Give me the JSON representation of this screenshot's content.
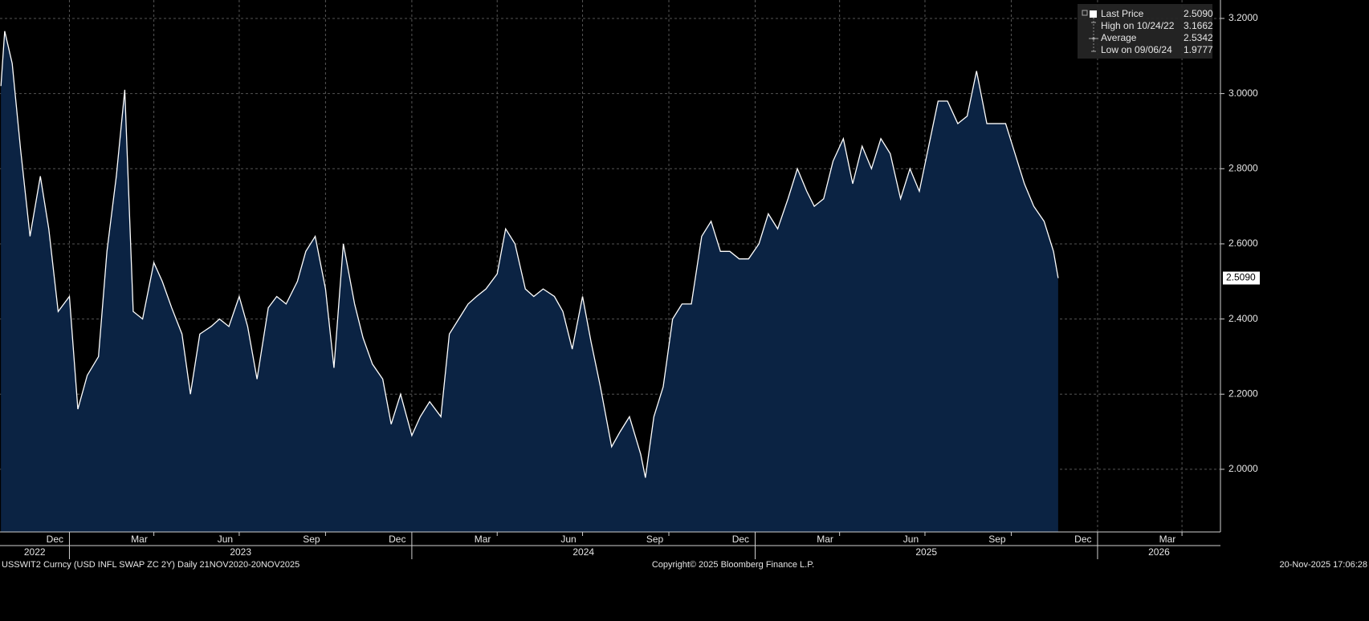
{
  "chart_data": {
    "type": "area",
    "series": [
      {
        "name": "Last Price",
        "color": "#ffffff",
        "fill": "#0b2343",
        "x": [
          "2022-10-20",
          "2022-10-24",
          "2022-11-01",
          "2022-11-10",
          "2022-11-20",
          "2022-12-01",
          "2022-12-10",
          "2022-12-20",
          "2023-01-01",
          "2023-01-10",
          "2023-01-20",
          "2023-02-01",
          "2023-02-10",
          "2023-02-20",
          "2023-03-01",
          "2023-03-10",
          "2023-03-20",
          "2023-04-01",
          "2023-04-10",
          "2023-04-20",
          "2023-05-01",
          "2023-05-10",
          "2023-05-20",
          "2023-06-01",
          "2023-06-10",
          "2023-06-20",
          "2023-07-01",
          "2023-07-10",
          "2023-07-20",
          "2023-08-01",
          "2023-08-10",
          "2023-08-20",
          "2023-09-01",
          "2023-09-10",
          "2023-09-20",
          "2023-10-01",
          "2023-10-10",
          "2023-10-20",
          "2023-11-01",
          "2023-11-10",
          "2023-11-20",
          "2023-12-01",
          "2023-12-10",
          "2023-12-20",
          "2024-01-01",
          "2024-01-10",
          "2024-01-20",
          "2024-02-01",
          "2024-02-10",
          "2024-02-20",
          "2024-03-01",
          "2024-03-10",
          "2024-03-20",
          "2024-04-01",
          "2024-04-10",
          "2024-04-20",
          "2024-05-01",
          "2024-05-10",
          "2024-05-20",
          "2024-06-01",
          "2024-06-10",
          "2024-06-20",
          "2024-07-01",
          "2024-07-10",
          "2024-07-20",
          "2024-08-01",
          "2024-08-10",
          "2024-08-20",
          "2024-09-01",
          "2024-09-06",
          "2024-09-15",
          "2024-09-25",
          "2024-10-05",
          "2024-10-15",
          "2024-10-25",
          "2024-11-05",
          "2024-11-15",
          "2024-11-25",
          "2024-12-05",
          "2024-12-15",
          "2024-12-25",
          "2025-01-05",
          "2025-01-15",
          "2025-01-25",
          "2025-02-05",
          "2025-02-15",
          "2025-02-25",
          "2025-03-05",
          "2025-03-15",
          "2025-03-25",
          "2025-04-05",
          "2025-04-15",
          "2025-04-25",
          "2025-05-05",
          "2025-05-15",
          "2025-05-25",
          "2025-06-05",
          "2025-06-15",
          "2025-06-25",
          "2025-07-05",
          "2025-07-15",
          "2025-07-25",
          "2025-08-05",
          "2025-08-15",
          "2025-08-25",
          "2025-09-05",
          "2025-09-15",
          "2025-09-25",
          "2025-10-05",
          "2025-10-15",
          "2025-10-25",
          "2025-11-05",
          "2025-11-15",
          "2025-11-20"
        ],
        "values": [
          3.02,
          3.1662,
          3.08,
          2.85,
          2.62,
          2.78,
          2.64,
          2.42,
          2.46,
          2.16,
          2.25,
          2.3,
          2.58,
          2.78,
          3.01,
          2.42,
          2.4,
          2.55,
          2.5,
          2.43,
          2.36,
          2.2,
          2.36,
          2.38,
          2.4,
          2.38,
          2.46,
          2.38,
          2.24,
          2.43,
          2.46,
          2.44,
          2.5,
          2.58,
          2.62,
          2.48,
          2.27,
          2.6,
          2.44,
          2.35,
          2.28,
          2.24,
          2.12,
          2.2,
          2.09,
          2.14,
          2.18,
          2.14,
          2.36,
          2.4,
          2.44,
          2.46,
          2.48,
          2.52,
          2.64,
          2.6,
          2.48,
          2.46,
          2.48,
          2.46,
          2.42,
          2.32,
          2.46,
          2.34,
          2.22,
          2.06,
          2.1,
          2.14,
          2.04,
          1.9777,
          2.14,
          2.22,
          2.4,
          2.44,
          2.44,
          2.62,
          2.66,
          2.58,
          2.58,
          2.56,
          2.56,
          2.6,
          2.68,
          2.64,
          2.72,
          2.8,
          2.74,
          2.7,
          2.72,
          2.82,
          2.88,
          2.76,
          2.86,
          2.8,
          2.88,
          2.84,
          2.72,
          2.8,
          2.74,
          2.86,
          2.98,
          2.98,
          2.92,
          2.94,
          3.06,
          2.92,
          2.92,
          2.92,
          2.84,
          2.76,
          2.7,
          2.66,
          2.58,
          2.509
        ]
      }
    ],
    "last_value_label": "2.5090",
    "xlim": [
      "2022-10-19",
      "2026-05-12"
    ],
    "ylim": [
      1.8333,
      3.249
    ],
    "yticks": [
      {
        "value": 2.0,
        "label": "2.0000"
      },
      {
        "value": 2.2,
        "label": "2.2000"
      },
      {
        "value": 2.4,
        "label": "2.4000"
      },
      {
        "value": 2.6,
        "label": "2.6000"
      },
      {
        "value": 2.8,
        "label": "2.8000"
      },
      {
        "value": 3.0,
        "label": "3.0000"
      },
      {
        "value": 3.2,
        "label": "3.2000"
      }
    ],
    "xticks": [
      {
        "value": "2022-12-01",
        "label": "Dec"
      },
      {
        "value": "2023-03-01",
        "label": "Mar"
      },
      {
        "value": "2023-06-01",
        "label": "Jun"
      },
      {
        "value": "2023-09-01",
        "label": "Sep"
      },
      {
        "value": "2023-12-01",
        "label": "Dec"
      },
      {
        "value": "2024-03-01",
        "label": "Mar"
      },
      {
        "value": "2024-06-01",
        "label": "Jun"
      },
      {
        "value": "2024-09-01",
        "label": "Sep"
      },
      {
        "value": "2024-12-01",
        "label": "Dec"
      },
      {
        "value": "2025-03-01",
        "label": "Mar"
      },
      {
        "value": "2025-06-01",
        "label": "Jun"
      },
      {
        "value": "2025-09-01",
        "label": "Sep"
      },
      {
        "value": "2025-12-01",
        "label": "Dec"
      },
      {
        "value": "2026-03-01",
        "label": "Mar"
      }
    ],
    "xgrid": [
      "2023-01-01",
      "2023-04-01",
      "2023-07-01",
      "2023-10-01",
      "2024-01-01",
      "2024-04-01",
      "2024-07-01",
      "2024-10-01",
      "2025-01-01",
      "2025-04-01",
      "2025-07-01",
      "2025-10-01",
      "2026-01-01",
      "2026-04-01"
    ],
    "years": [
      {
        "value": "2022-01-01",
        "label": "2022"
      },
      {
        "value": "2023-01-01",
        "label": "2023"
      },
      {
        "value": "2024-01-01",
        "label": "2024"
      },
      {
        "value": "2025-01-01",
        "label": "2025"
      },
      {
        "value": "2026-01-01",
        "label": "2026"
      }
    ],
    "grid": true,
    "legend": [
      {
        "name": "Last Price",
        "value_label": "2.5090"
      },
      {
        "name": "High on 10/24/22",
        "value_label": "3.1662"
      },
      {
        "name": "Average",
        "value_label": "2.5342"
      },
      {
        "name": "Low on 09/06/24",
        "value_label": "1.9777"
      }
    ],
    "footer": {
      "left": "USSWIT2 Curncy (USD INFL SWAP ZC 2Y) Daily 21NOV2020-20NOV2025",
      "center": "Copyright© 2025 Bloomberg Finance L.P.",
      "right": "20-Nov-2025 17:06:28"
    }
  }
}
